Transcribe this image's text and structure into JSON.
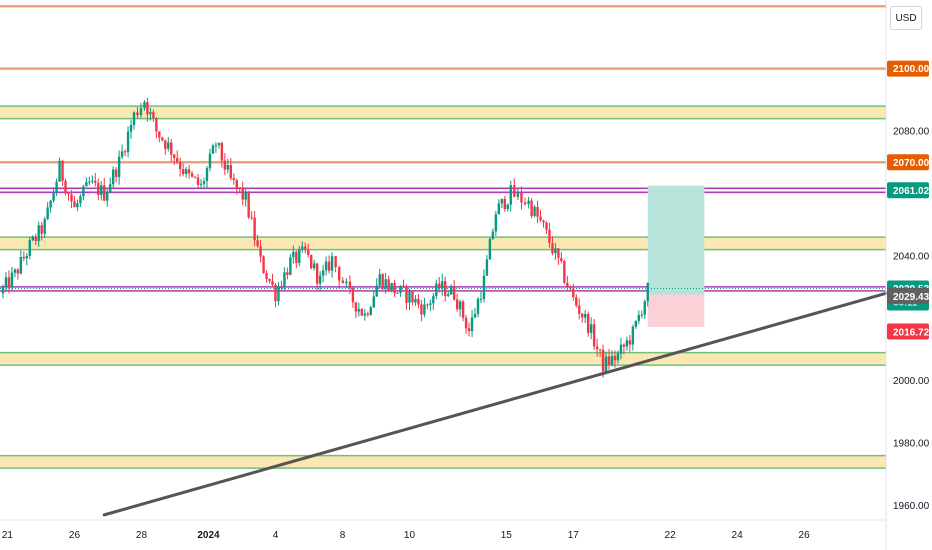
{
  "currency_label": "USD",
  "colors": {
    "up": "#089981",
    "down": "#f23645",
    "orange_line": "#f0a07a",
    "zone_fill": "#fbe7b4",
    "zone_border": "#6cc17e",
    "magenta_line": "#b03bb8",
    "trendline": "#555555",
    "badge_orange": "#e65c00",
    "badge_green": "#089981",
    "badge_gray": "#606060",
    "badge_red": "#f23645",
    "tp_zone": "#b7e4da",
    "sl_zone": "#fbd0d6"
  },
  "chart_data": {
    "type": "candlestick",
    "y_axis": {
      "range": [
        1956,
        2122
      ],
      "ticks": [
        "2080.00",
        "2040.00",
        "2000.00",
        "1980.00",
        "1960.00"
      ],
      "tick_values": [
        2080,
        2040,
        2000,
        1980,
        1960
      ]
    },
    "x_axis": {
      "ticks": [
        "21",
        "26",
        "28",
        "2024",
        "4",
        "8",
        "10",
        "15",
        "17",
        "22",
        "24",
        "26"
      ],
      "tick_positions": [
        0.5,
        5,
        9.5,
        14,
        18.5,
        23,
        27.5,
        34,
        38.5,
        45,
        49.5,
        54
      ],
      "range": [
        0,
        59.5
      ]
    },
    "horizontal_lines": [
      {
        "price": 2120,
        "style": "orange"
      },
      {
        "price": 2100,
        "style": "orange",
        "label": "2100.00"
      },
      {
        "price": 2070,
        "style": "orange",
        "label": "2070.00"
      },
      {
        "price": 2061.02,
        "style": "magenta",
        "label": "2061.02"
      },
      {
        "price": 2029.43,
        "style": "magenta",
        "label": "2029.43"
      }
    ],
    "zones": [
      {
        "low": 2084,
        "high": 2088
      },
      {
        "low": 2042,
        "high": 2046
      },
      {
        "low": 2005,
        "high": 2009
      },
      {
        "low": 1972,
        "high": 1976
      }
    ],
    "trendline": {
      "x1": 7,
      "y1": 1957,
      "x2": 59.5,
      "y2": 2028
    },
    "position": {
      "x1": 43.5,
      "x2": 47.3,
      "entry": 2027.6,
      "target": 2062.5,
      "stop": 2017.2
    },
    "current_price": {
      "price": 2029.53,
      "label": "2029.53",
      "countdown": "00:11"
    },
    "stop_label": {
      "price": 2016.72,
      "label": "2016.72"
    },
    "path": [
      [
        0,
        2028
      ],
      [
        1,
        2034
      ],
      [
        2,
        2043
      ],
      [
        3,
        2050
      ],
      [
        4,
        2068
      ],
      [
        5,
        2055
      ],
      [
        6,
        2063
      ],
      [
        7,
        2060
      ],
      [
        8,
        2070
      ],
      [
        9,
        2085
      ],
      [
        9.7,
        2090
      ],
      [
        10.5,
        2080
      ],
      [
        11.5,
        2074
      ],
      [
        12.5,
        2066
      ],
      [
        13.5,
        2062
      ],
      [
        14.5,
        2076
      ],
      [
        15.5,
        2064
      ],
      [
        16.5,
        2058
      ],
      [
        17.5,
        2038
      ],
      [
        18.5,
        2028
      ],
      [
        19.5,
        2038
      ],
      [
        20.5,
        2041
      ],
      [
        21.5,
        2032
      ],
      [
        22.3,
        2039
      ],
      [
        23.5,
        2027
      ],
      [
        24.5,
        2021
      ],
      [
        25.5,
        2033
      ],
      [
        26.5,
        2029
      ],
      [
        27.5,
        2027
      ],
      [
        28.5,
        2023
      ],
      [
        29.5,
        2030
      ],
      [
        30.5,
        2028
      ],
      [
        31.5,
        2016
      ],
      [
        32.5,
        2032
      ],
      [
        33.3,
        2054
      ],
      [
        34.3,
        2060
      ],
      [
        35.5,
        2057
      ],
      [
        36.5,
        2049
      ],
      [
        37.5,
        2038
      ],
      [
        38.5,
        2026
      ],
      [
        39.5,
        2018
      ],
      [
        40.5,
        2005
      ],
      [
        41.5,
        2008
      ],
      [
        42.5,
        2015
      ],
      [
        43.5,
        2029
      ]
    ]
  }
}
